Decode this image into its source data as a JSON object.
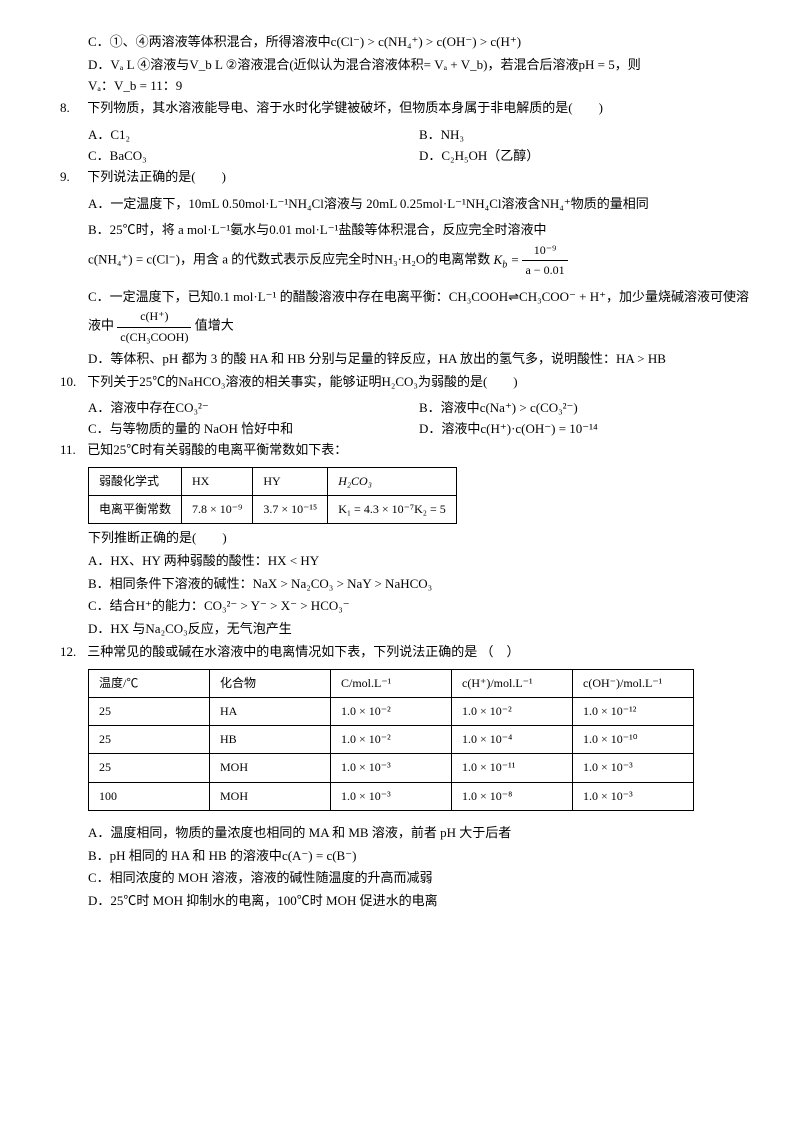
{
  "items": {
    "c_text": "C．①、④两溶液等体积混合，所得溶液中",
    "c_formula": "c(Cl⁻) > c(NH₄⁺) > c(OH⁻) > c(H⁺)",
    "d_text1": "D．",
    "d_f1": "Vₐ L",
    "d_text2": " ④溶液与",
    "d_f2": "V_b L",
    "d_text3": " ②溶液混合(近似认为混合溶液体积",
    "d_f3": "= Vₐ + V_b",
    "d_text4": ")，若混合后溶液",
    "d_f4": "pH = 5",
    "d_text5": "，则",
    "d_f5": "Vₐ",
    "d_text6": "：",
    "d_f6": "V_b = 11",
    "d_text7": "：9",
    "q8": {
      "stem": "下列物质，其水溶液能导电、溶于水时化学键被破坏，但物质本身属于非电解质的是(　　)",
      "a": "C1₂",
      "b": "NH₃",
      "c": "BaCO₃",
      "d": "C₂H₅OH",
      "d_suffix": "（乙醇）"
    },
    "q9": {
      "stem": "下列说法正确的是(　　)",
      "a1": "A．一定温度下，10mL ",
      "a2": "0.50mol·L⁻¹NH₄Cl",
      "a3": "溶液与 20mL ",
      "a4": "0.25mol·L⁻¹NH₄Cl",
      "a5": "溶液含",
      "a6": "NH₄⁺",
      "a7": "物质的量相同",
      "b1": "B．",
      "b2": "25℃",
      "b3": "时，将 a ",
      "b4": "mol·L⁻¹",
      "b5": "氨水与0.01 ",
      "b6": "mol·L⁻¹",
      "b7": "盐酸等体积混合，反应完全时溶液中",
      "b8": "c(NH₄⁺) = c(Cl⁻)",
      "b9": "，用含 a 的代数式表示反应完全时",
      "b10": "NH₃·H₂O",
      "b11": "的电离常数",
      "c1": "C．一定温度下，已知",
      "c2": "0.1 mol·L⁻¹",
      "c3": " 的醋酸溶液中存在电离平衡：",
      "c4": "CH₃COOH⇌CH₃COO⁻ + H⁺",
      "c5": "，加少量烧碱溶液可使溶液中",
      "c7": "值增大",
      "d1": "D．等体积、pH 都为 3 的酸 HA 和 HB 分别与足量的锌反应，HA 放出的氢气多，说明酸性：",
      "d2": "HA > HB"
    },
    "q10": {
      "stem1": "下列关于",
      "stem2": "25℃",
      "stem3": "的",
      "stem4": "NaHCO₃",
      "stem5": "溶液的相关事实，能够证明",
      "stem6": "H₂CO₃",
      "stem7": "为弱酸的是(　　)",
      "a": "溶液中存在",
      "a2": "CO₃²⁻",
      "b": "溶液中",
      "b2": "c(Na⁺) > c(CO₃²⁻)",
      "c": "与等物质的量的 NaOH 恰好中和",
      "d": "溶液中",
      "d2": "c(H⁺)·c(OH⁻) = 10⁻¹⁴"
    },
    "q11": {
      "stem1": "已知",
      "stem2": "25℃",
      "stem3": "时有关弱酸的电离平衡常数如下表：",
      "t": {
        "h1": "弱酸化学式",
        "h2": "HX",
        "h3": "HY",
        "h4": "H₂CO₃",
        "r1": "电离平衡常数",
        "c2": "7.8 × 10⁻⁹",
        "c3": "3.7 × 10⁻¹⁵",
        "c4": "K₁ = 4.3 × 10⁻⁷K₂ = 5"
      },
      "after": "下列推断正确的是(　　)",
      "a": "A．HX、HY 两种弱酸的酸性：",
      "a2": "HX < HY",
      "b": "B．相同条件下溶液的碱性：",
      "b2": "NaX > Na₂CO₃ > NaY > NaHCO₃",
      "c": "C．结合",
      "c2": "H⁺",
      "c3": "的能力：",
      "c4": "CO₃²⁻ > Y⁻ > X⁻ > HCO₃⁻",
      "d": "D．HX 与",
      "d2": "Na₂CO₃",
      "d3": "反应，无气泡产生"
    },
    "q12": {
      "stem": "三种常见的酸或碱在水溶液中的电离情况如下表，下列说法正确的是 （　）",
      "t": {
        "h": [
          "温度/℃",
          "化合物",
          "C/mol.L⁻¹",
          "c(H⁺)/mol.L⁻¹",
          "c(OH⁻)/mol.L⁻¹"
        ],
        "rows": [
          [
            "25",
            "HA",
            "1.0 × 10⁻²",
            "1.0 × 10⁻²",
            "1.0 × 10⁻¹²"
          ],
          [
            "25",
            "HB",
            "1.0 × 10⁻²",
            "1.0 × 10⁻⁴",
            "1.0 × 10⁻¹⁰"
          ],
          [
            "25",
            "MOH",
            "1.0 × 10⁻³",
            "1.0 × 10⁻¹¹",
            "1.0 × 10⁻³"
          ],
          [
            "100",
            "MOH",
            "1.0 × 10⁻³",
            "1.0 × 10⁻⁸",
            "1.0 × 10⁻³"
          ]
        ]
      },
      "a": "A．温度相同，物质的量浓度也相同的 MA 和 MB 溶液，前者 pH 大于后者",
      "b": "B．pH 相同的 HA 和 HB 的溶液中",
      "b2": "c(A⁻) = c(B⁻)",
      "c": "C．相同浓度的 MOH 溶液，溶液的碱性随温度的升高而减弱",
      "d": "D．",
      "d2": "25℃",
      "d3": "时 MOH 抑制水的电离，",
      "d4": "100℃",
      "d5": "时 MOH 促进水的电离"
    }
  }
}
